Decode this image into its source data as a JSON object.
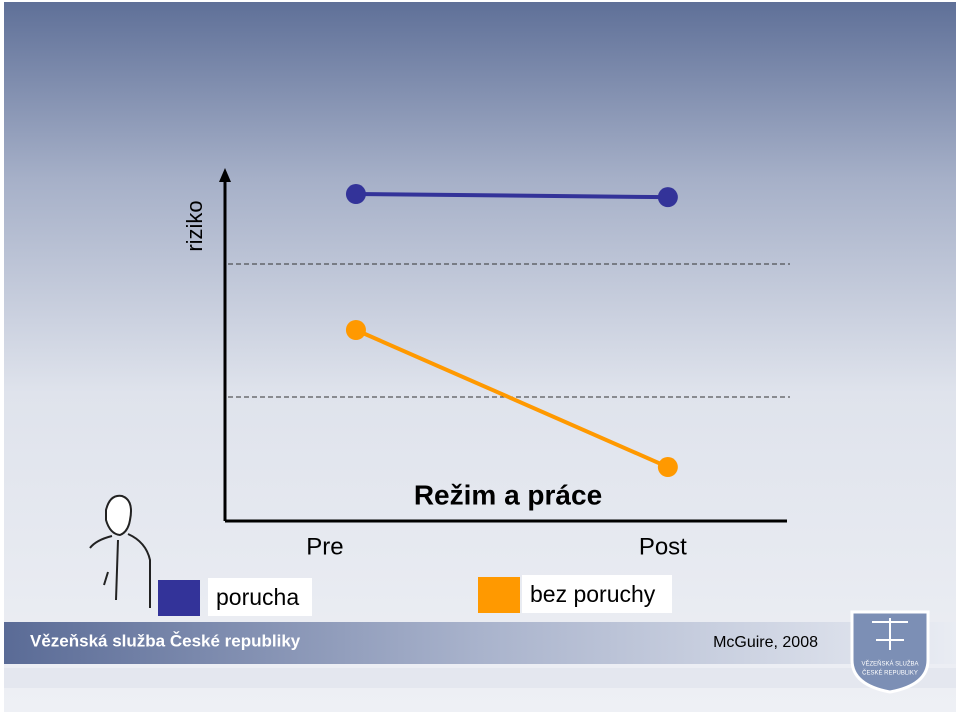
{
  "chart_data": {
    "type": "line",
    "x_label": "Režim a práce",
    "y_label": "riziko",
    "categories": [
      "Pre",
      "Post"
    ],
    "series": [
      {
        "name": "porucha",
        "color": "#333399",
        "values": [
          94.5,
          93.6
        ]
      },
      {
        "name": "bez poruchy",
        "color": "#ff9900",
        "values": [
          55.2,
          15.6
        ]
      }
    ],
    "ylim": [
      0,
      100
    ]
  },
  "footer": {
    "organization": "Vězeňská služba České republiky",
    "citation": "McGuire, 2008",
    "logo_text": [
      "VĚZEŇSKÁ SLUŽBA",
      "ČESKÉ REPUBLIKY"
    ]
  }
}
